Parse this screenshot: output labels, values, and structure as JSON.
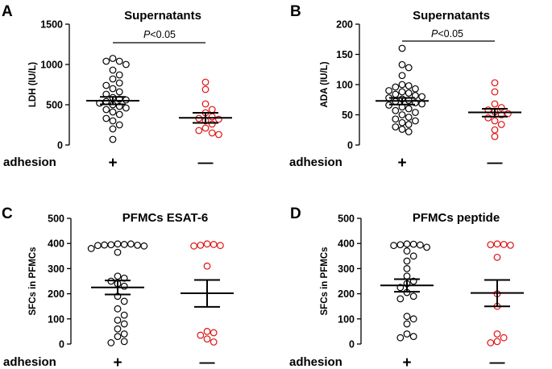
{
  "chart_data": [
    {
      "type": "scatter",
      "panel": "A",
      "title": "Supernatants",
      "ylabel": "LDH (IU/L)",
      "xlabel": "adhesion",
      "ylim": [
        0,
        1500
      ],
      "yticks": [
        "0",
        "500",
        "1000",
        "1500"
      ],
      "categories": [
        "+",
        "—"
      ],
      "annotation": {
        "italic": "P",
        "rest": "<0.05"
      },
      "series": [
        {
          "name": "+",
          "color": "#000000",
          "mean": 550,
          "sem_low": 505,
          "sem_high": 598,
          "values": [
            1075,
            1040,
            1040,
            1000,
            930,
            870,
            820,
            770,
            740,
            700,
            660,
            630,
            590,
            570,
            560,
            540,
            520,
            500,
            480,
            460,
            440,
            410,
            380,
            330,
            300,
            250,
            200,
            70
          ]
        },
        {
          "name": "—",
          "color": "#e01010",
          "mean": 338,
          "sem_low": 275,
          "sem_high": 400,
          "values": [
            780,
            690,
            510,
            440,
            400,
            350,
            330,
            320,
            300,
            260,
            210,
            180,
            150,
            130
          ]
        }
      ]
    },
    {
      "type": "scatter",
      "panel": "B",
      "title": "Supernatants",
      "ylabel": "ADA (IU/L)",
      "xlabel": "adhesion",
      "ylim": [
        0,
        200
      ],
      "yticks": [
        "0",
        "50",
        "100",
        "150",
        "200"
      ],
      "categories": [
        "+",
        "—"
      ],
      "annotation": {
        "italic": "P",
        "rest": "<0.05"
      },
      "series": [
        {
          "name": "+",
          "color": "#000000",
          "mean": 73,
          "sem_low": 67,
          "sem_high": 78,
          "values": [
            160,
            133,
            128,
            115,
            100,
            98,
            96,
            93,
            90,
            88,
            86,
            84,
            82,
            80,
            78,
            76,
            74,
            72,
            70,
            68,
            66,
            63,
            60,
            57,
            54,
            50,
            46,
            43,
            40,
            37,
            34,
            30,
            26,
            22
          ]
        },
        {
          "name": "—",
          "color": "#e01010",
          "mean": 54,
          "sem_low": 47,
          "sem_high": 60,
          "values": [
            103,
            88,
            68,
            62,
            58,
            55,
            52,
            50,
            45,
            40,
            34,
            25,
            14
          ]
        }
      ]
    },
    {
      "type": "scatter",
      "panel": "C",
      "title": "PFMCs ESAT-6",
      "ylabel": "SFCs in PFMCs",
      "xlabel": "adhesion",
      "ylim": [
        0,
        500
      ],
      "yticks": [
        "0",
        "100",
        "200",
        "300",
        "400",
        "500"
      ],
      "categories": [
        "+",
        "—"
      ],
      "series": [
        {
          "name": "+",
          "color": "#000000",
          "mean": 225,
          "sem_low": 197,
          "sem_high": 253,
          "values": [
            398,
            398,
            396,
            395,
            394,
            393,
            392,
            390,
            380,
            365,
            270,
            262,
            250,
            240,
            230,
            190,
            170,
            140,
            115,
            95,
            80,
            60,
            40,
            30,
            10,
            5
          ]
        },
        {
          "name": "—",
          "color": "#e01010",
          "mean": 202,
          "sem_low": 148,
          "sem_high": 255,
          "values": [
            398,
            396,
            393,
            392,
            390,
            310,
            50,
            45,
            35,
            20,
            8
          ]
        }
      ]
    },
    {
      "type": "scatter",
      "panel": "D",
      "title": "PFMCs peptide",
      "ylabel": "SFCs in PFMCs",
      "xlabel": "adhesion",
      "ylim": [
        0,
        500
      ],
      "yticks": [
        "0",
        "100",
        "200",
        "300",
        "400",
        "500"
      ],
      "categories": [
        "+",
        "—"
      ],
      "series": [
        {
          "name": "+",
          "color": "#000000",
          "mean": 233,
          "sem_low": 208,
          "sem_high": 258,
          "values": [
            398,
            397,
            395,
            394,
            392,
            385,
            370,
            350,
            330,
            300,
            270,
            250,
            240,
            225,
            205,
            190,
            180,
            110,
            100,
            80,
            40,
            30,
            25
          ]
        },
        {
          "name": "—",
          "color": "#e01010",
          "mean": 203,
          "sem_low": 150,
          "sem_high": 255,
          "values": [
            398,
            396,
            395,
            393,
            345,
            200,
            150,
            40,
            25,
            10,
            5
          ]
        }
      ]
    }
  ]
}
